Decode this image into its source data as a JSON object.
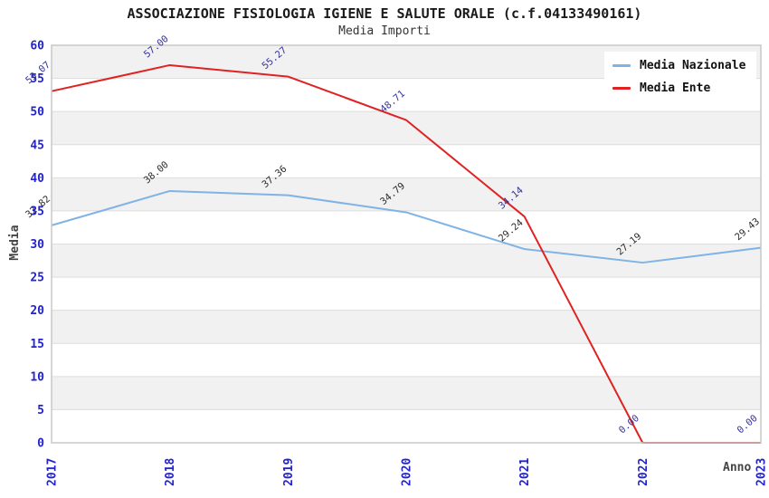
{
  "header": {
    "title": "ASSOCIAZIONE FISIOLOGIA IGIENE E SALUTE ORALE (c.f.04133490161)",
    "subtitle": "Media Importi"
  },
  "chart_data": {
    "type": "line",
    "x_categories": [
      "2017",
      "2018",
      "2019",
      "2020",
      "2021",
      "2022",
      "2023"
    ],
    "xlabel": "Anno",
    "ylabel": "Media",
    "ylim": [
      0,
      60
    ],
    "ytick_step": 5,
    "yticks": [
      0,
      5,
      10,
      15,
      20,
      25,
      30,
      35,
      40,
      45,
      50,
      55,
      60
    ],
    "grid": "horizontal gridlines every 5 units with alternating gray/white bands, gray band at top (55-60)",
    "legend": {
      "position": "top-right",
      "entries": [
        "Media Nazionale",
        "Media Ente"
      ]
    },
    "series": [
      {
        "name": "Media Nazionale",
        "color": "#7FB3E5",
        "label_color": "#2B2B2B",
        "values": [
          32.82,
          38.0,
          37.36,
          34.79,
          29.24,
          27.19,
          29.43
        ]
      },
      {
        "name": "Media Ente",
        "color": "#E02222",
        "label_color": "#333399",
        "values": [
          53.07,
          57.0,
          55.27,
          48.71,
          34.14,
          0.0,
          0.0
        ]
      }
    ],
    "colors": {
      "tick_label": "#2323CC",
      "band_gray": "#F1F1F1",
      "band_white": "#FFFFFF",
      "gridline": "#DDDDDD",
      "plot_border": "#C8C8C8",
      "axis_title": "#444444",
      "background": "#FFFFFF"
    }
  }
}
